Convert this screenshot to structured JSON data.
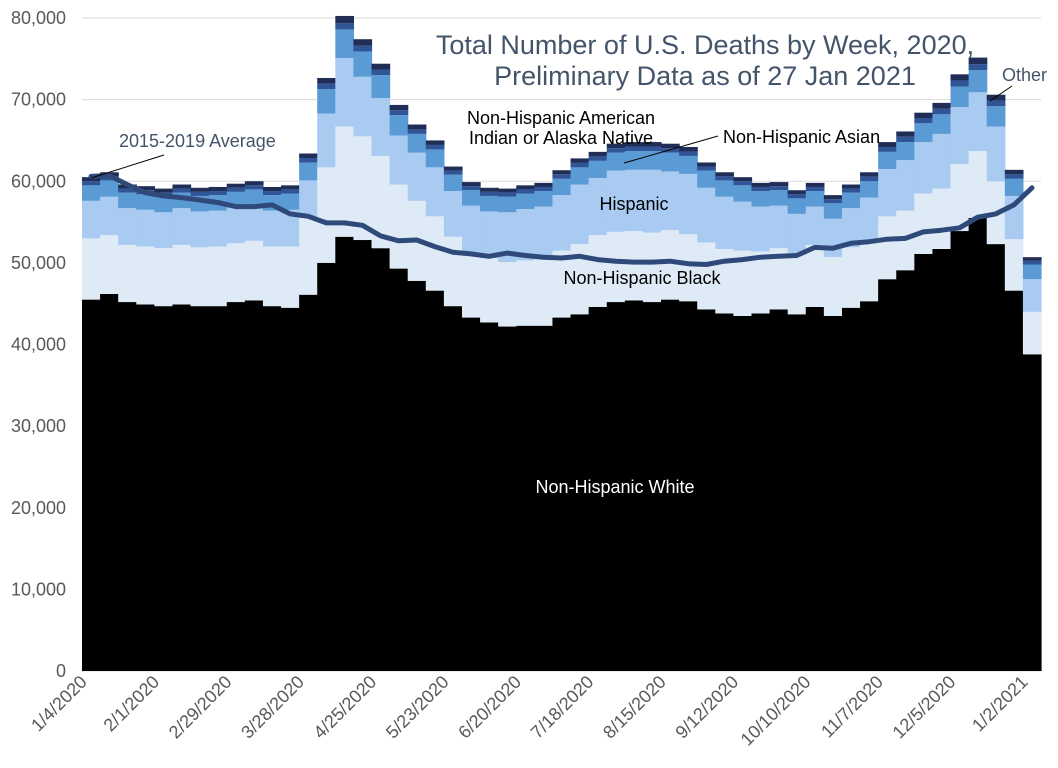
{
  "chart_data": {
    "type": "area",
    "stacked": true,
    "title": "Total Number of U.S. Deaths by Week, 2020,",
    "subtitle": "Preliminary Data as of 27 Jan 2021",
    "xlabel": "",
    "ylabel": "",
    "ylim": [
      0,
      80000
    ],
    "yticks": [
      0,
      10000,
      20000,
      30000,
      40000,
      50000,
      60000,
      70000,
      80000
    ],
    "ytick_labels": [
      "0",
      "10,000",
      "20,000",
      "30,000",
      "40,000",
      "50,000",
      "60,000",
      "70,000",
      "80,000"
    ],
    "grid": true,
    "xtick_labels": [
      "1/4/2020",
      "2/1/2020",
      "2/29/2020",
      "3/28/2020",
      "4/25/2020",
      "5/23/2020",
      "6/20/2020",
      "7/18/2020",
      "8/15/2020",
      "9/12/2020",
      "10/10/2020",
      "11/7/2020",
      "12/5/2020",
      "1/2/2021"
    ],
    "xtick_index": [
      0,
      4,
      8,
      12,
      16,
      20,
      24,
      28,
      32,
      36,
      40,
      44,
      48,
      52
    ],
    "categories": [
      "1/4/2020",
      "1/11/2020",
      "1/18/2020",
      "1/25/2020",
      "2/1/2020",
      "2/8/2020",
      "2/15/2020",
      "2/22/2020",
      "2/29/2020",
      "3/7/2020",
      "3/14/2020",
      "3/21/2020",
      "3/28/2020",
      "4/4/2020",
      "4/11/2020",
      "4/18/2020",
      "4/25/2020",
      "5/2/2020",
      "5/9/2020",
      "5/16/2020",
      "5/23/2020",
      "5/30/2020",
      "6/6/2020",
      "6/13/2020",
      "6/20/2020",
      "6/27/2020",
      "7/4/2020",
      "7/11/2020",
      "7/18/2020",
      "7/25/2020",
      "8/1/2020",
      "8/8/2020",
      "8/15/2020",
      "8/22/2020",
      "8/29/2020",
      "9/5/2020",
      "9/12/2020",
      "9/19/2020",
      "9/26/2020",
      "10/3/2020",
      "10/10/2020",
      "10/17/2020",
      "10/24/2020",
      "10/31/2020",
      "11/7/2020",
      "11/14/2020",
      "11/21/2020",
      "11/28/2020",
      "12/5/2020",
      "12/12/2020",
      "12/19/2020",
      "12/26/2020",
      "1/2/2021"
    ],
    "series": [
      {
        "name": "Non-Hispanic White",
        "color": "#000000",
        "values": [
          45500,
          46200,
          45200,
          44900,
          44700,
          44900,
          44700,
          44700,
          45200,
          45400,
          44700,
          44500,
          46100,
          50000,
          53200,
          52800,
          51800,
          49300,
          47800,
          46600,
          44700,
          43300,
          42700,
          42200,
          42300,
          42300,
          43300,
          43700,
          44600,
          45200,
          45400,
          45200,
          45500,
          45300,
          44300,
          43800,
          43500,
          43800,
          44300,
          43700,
          44600,
          43500,
          44500,
          45300,
          48000,
          49100,
          51100,
          51700,
          53900,
          55500,
          52300,
          46600,
          38800
        ]
      },
      {
        "name": "Non-Hispanic Black",
        "color": "#deebf7",
        "values": [
          7500,
          7200,
          7000,
          7100,
          7100,
          7300,
          7200,
          7300,
          7200,
          7300,
          7300,
          7500,
          9400,
          11700,
          13500,
          12700,
          11300,
          10300,
          9800,
          9100,
          8500,
          8000,
          7900,
          7900,
          8000,
          8200,
          8200,
          8600,
          8800,
          8600,
          8500,
          8500,
          8500,
          8200,
          8200,
          7900,
          8000,
          7600,
          7500,
          7500,
          7600,
          7200,
          7400,
          7500,
          7700,
          7300,
          7400,
          7400,
          8200,
          8200,
          7700,
          6300,
          5200
        ]
      },
      {
        "name": "Hispanic",
        "color": "#a9cbf2",
        "values": [
          4600,
          4700,
          4500,
          4500,
          4400,
          4500,
          4400,
          4400,
          4400,
          4400,
          4400,
          4500,
          4600,
          6600,
          8400,
          7300,
          7100,
          6000,
          5900,
          6000,
          5600,
          5700,
          5700,
          6100,
          6300,
          6400,
          6800,
          7300,
          7000,
          7500,
          7500,
          7700,
          7200,
          7400,
          6700,
          6400,
          6000,
          5500,
          5200,
          4800,
          4700,
          4700,
          4800,
          5200,
          5800,
          6200,
          6300,
          6700,
          7000,
          7200,
          6700,
          5300,
          4000
        ]
      },
      {
        "name": "Non-Hispanic Asian",
        "color": "#5b9bd5",
        "values": [
          1900,
          2000,
          1900,
          1900,
          1900,
          1900,
          1900,
          1900,
          1900,
          1900,
          1900,
          2000,
          2200,
          3000,
          3500,
          3100,
          2800,
          2500,
          2300,
          2200,
          2000,
          1900,
          1900,
          1900,
          1900,
          1900,
          2000,
          2100,
          2100,
          2200,
          2300,
          2300,
          2300,
          2200,
          2100,
          2000,
          2000,
          1900,
          1900,
          1900,
          1900,
          1900,
          1900,
          2000,
          2100,
          2200,
          2300,
          2400,
          2500,
          2700,
          2500,
          2100,
          1800
        ]
      },
      {
        "name": "Non-Hispanic American Indian or Alaska Native",
        "color": "#2f5597",
        "values": [
          500,
          500,
          500,
          500,
          500,
          500,
          500,
          500,
          500,
          500,
          500,
          500,
          550,
          650,
          750,
          700,
          650,
          600,
          550,
          550,
          500,
          500,
          500,
          500,
          500,
          500,
          550,
          550,
          550,
          550,
          550,
          550,
          550,
          550,
          500,
          500,
          500,
          500,
          500,
          500,
          500,
          500,
          500,
          550,
          600,
          650,
          650,
          700,
          750,
          750,
          700,
          550,
          450
        ]
      },
      {
        "name": "Other",
        "color": "#1f2d57",
        "values": [
          500,
          500,
          500,
          500,
          500,
          500,
          500,
          500,
          500,
          500,
          500,
          500,
          550,
          700,
          900,
          800,
          750,
          650,
          600,
          550,
          500,
          500,
          500,
          500,
          500,
          500,
          500,
          550,
          550,
          550,
          550,
          550,
          550,
          550,
          500,
          500,
          500,
          500,
          500,
          500,
          500,
          500,
          500,
          550,
          600,
          650,
          650,
          700,
          750,
          800,
          700,
          550,
          450
        ]
      }
    ],
    "average": {
      "name": "2015-2019 Average",
      "color": "#2f4a7a",
      "values": [
        60600,
        60700,
        59600,
        58600,
        58200,
        58000,
        57700,
        57400,
        56900,
        56900,
        57100,
        56000,
        55700,
        54900,
        54900,
        54600,
        53300,
        52700,
        52800,
        52000,
        51300,
        51100,
        50800,
        51200,
        50900,
        50700,
        50600,
        50800,
        50400,
        50200,
        50100,
        50100,
        50200,
        49900,
        49800,
        50200,
        50400,
        50700,
        50800,
        50900,
        51900,
        51800,
        52400,
        52600,
        52900,
        53000,
        53800,
        54000,
        54300,
        55600,
        56000,
        57100,
        59200
      ]
    },
    "labels": {
      "white": "Non-Hispanic White",
      "black": "Non-Hispanic Black",
      "hispanic": "Hispanic",
      "asian": "Non-Hispanic Asian",
      "aian_line1": "Non-Hispanic American",
      "aian_line2": "Indian or Alaska Native",
      "other": "Other",
      "average": "2015-2019 Average"
    }
  }
}
